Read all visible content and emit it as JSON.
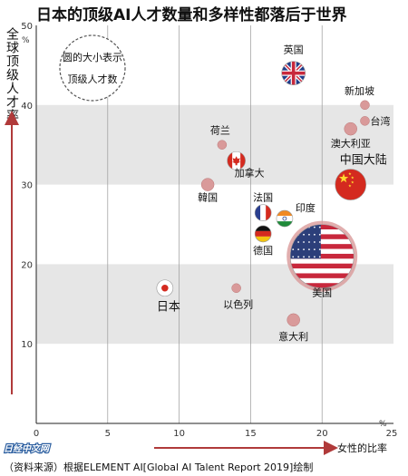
{
  "chart_data": {
    "type": "scatter",
    "title": "日本的顶级AI人才数量和多样性都落后于世界",
    "ylabel": "全球顶级人才率",
    "ylabel_unit": "%",
    "xlabel": "女性的比率",
    "xlabel_unit": "%",
    "xlim": [
      0,
      25
    ],
    "ylim": [
      0,
      50
    ],
    "xticks": [
      "0",
      "5",
      "10",
      "15",
      "20",
      "25"
    ],
    "yticks": [
      "10",
      "20",
      "30",
      "40",
      "50"
    ],
    "grid": true,
    "legend_note": [
      "圆的大小表示",
      "顶级人才数"
    ],
    "points": [
      {
        "label": "英国",
        "x": 18,
        "y": 44,
        "size": "medium",
        "flag": "uk"
      },
      {
        "label": "新加坡",
        "x": 23,
        "y": 40,
        "size": "tiny"
      },
      {
        "label": "台湾",
        "x": 23,
        "y": 38,
        "size": "tiny"
      },
      {
        "label": "荷兰",
        "x": 13,
        "y": 35,
        "size": "tiny"
      },
      {
        "label": "澳大利亚",
        "x": 22,
        "y": 37,
        "size": "small"
      },
      {
        "label": "加拿大",
        "x": 14,
        "y": 33,
        "size": "small",
        "flag": "canada"
      },
      {
        "label": "中国大陆",
        "x": 22,
        "y": 30,
        "size": "medium",
        "flag": "china"
      },
      {
        "label": "韓国",
        "x": 12,
        "y": 30,
        "size": "small"
      },
      {
        "label": "法国",
        "x": 16,
        "y": 26,
        "size": "small",
        "flag": "france"
      },
      {
        "label": "印度",
        "x": 17,
        "y": 25.5,
        "size": "small",
        "flag": "india"
      },
      {
        "label": "德国",
        "x": 16,
        "y": 24.5,
        "size": "small",
        "flag": "germany"
      },
      {
        "label": "美国",
        "x": 20,
        "y": 21,
        "size": "large",
        "flag": "usa"
      },
      {
        "label": "日本",
        "x": 9,
        "y": 17,
        "size": "small",
        "flag": "japan"
      },
      {
        "label": "以色列",
        "x": 14,
        "y": 17,
        "size": "tiny"
      },
      {
        "label": "意大利",
        "x": 18,
        "y": 13,
        "size": "small"
      }
    ]
  },
  "branding": "日经中文网",
  "source": "（资料来源）根据ELEMENT AI[Global AI Talent Report 2019]绘制",
  "colors": {
    "band": "#e6e6e6",
    "bubble": "#d99a9a",
    "axis_arrow": "#b03a3a"
  }
}
